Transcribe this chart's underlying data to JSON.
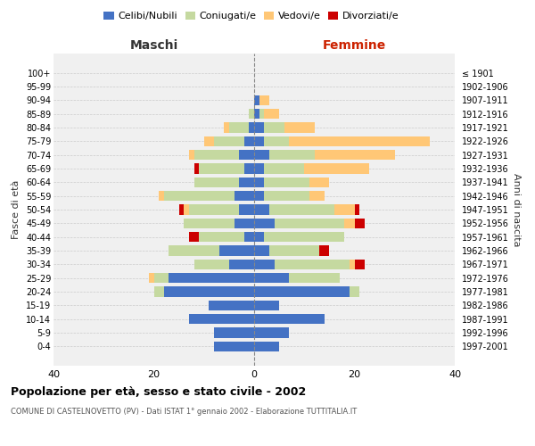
{
  "age_groups": [
    "0-4",
    "5-9",
    "10-14",
    "15-19",
    "20-24",
    "25-29",
    "30-34",
    "35-39",
    "40-44",
    "45-49",
    "50-54",
    "55-59",
    "60-64",
    "65-69",
    "70-74",
    "75-79",
    "80-84",
    "85-89",
    "90-94",
    "95-99",
    "100+"
  ],
  "birth_years": [
    "1997-2001",
    "1992-1996",
    "1987-1991",
    "1982-1986",
    "1977-1981",
    "1972-1976",
    "1967-1971",
    "1962-1966",
    "1957-1961",
    "1952-1956",
    "1947-1951",
    "1942-1946",
    "1937-1941",
    "1932-1936",
    "1927-1931",
    "1922-1926",
    "1917-1921",
    "1912-1916",
    "1907-1911",
    "1902-1906",
    "≤ 1901"
  ],
  "maschi": {
    "celibi": [
      8,
      8,
      13,
      9,
      18,
      17,
      5,
      7,
      2,
      4,
      3,
      4,
      3,
      2,
      3,
      2,
      1,
      0,
      0,
      0,
      0
    ],
    "coniugati": [
      0,
      0,
      0,
      0,
      2,
      3,
      7,
      10,
      9,
      10,
      10,
      14,
      9,
      9,
      9,
      6,
      4,
      1,
      0,
      0,
      0
    ],
    "vedovi": [
      0,
      0,
      0,
      0,
      0,
      1,
      0,
      0,
      0,
      0,
      1,
      1,
      0,
      0,
      1,
      2,
      1,
      0,
      0,
      0,
      0
    ],
    "divorziati": [
      0,
      0,
      0,
      0,
      0,
      0,
      0,
      0,
      2,
      0,
      1,
      0,
      0,
      1,
      0,
      0,
      0,
      0,
      0,
      0,
      0
    ]
  },
  "femmine": {
    "nubili": [
      5,
      7,
      14,
      5,
      19,
      7,
      4,
      3,
      2,
      4,
      3,
      2,
      2,
      2,
      3,
      2,
      2,
      1,
      1,
      0,
      0
    ],
    "coniugate": [
      0,
      0,
      0,
      0,
      2,
      10,
      15,
      10,
      16,
      14,
      13,
      9,
      9,
      8,
      9,
      5,
      4,
      1,
      0,
      0,
      0
    ],
    "vedove": [
      0,
      0,
      0,
      0,
      0,
      0,
      1,
      0,
      0,
      2,
      4,
      3,
      4,
      13,
      16,
      28,
      6,
      3,
      2,
      0,
      0
    ],
    "divorziate": [
      0,
      0,
      0,
      0,
      0,
      0,
      2,
      2,
      0,
      2,
      1,
      0,
      0,
      0,
      0,
      0,
      0,
      0,
      0,
      0,
      0
    ]
  },
  "colors": {
    "celibi": "#4472C4",
    "coniugati": "#c5d9a0",
    "vedovi": "#ffc776",
    "divorziati": "#cc0000"
  },
  "title": "Popolazione per età, sesso e stato civile - 2002",
  "subtitle": "COMUNE DI CASTELNOVETTO (PV) - Dati ISTAT 1° gennaio 2002 - Elaborazione TUTTITALIA.IT",
  "xlabel_left": "Maschi",
  "xlabel_right": "Femmine",
  "ylabel_left": "Fasce di età",
  "ylabel_right": "Anni di nascita",
  "xlim": 40,
  "background_color": "#ffffff",
  "grid_color": "#cccccc"
}
